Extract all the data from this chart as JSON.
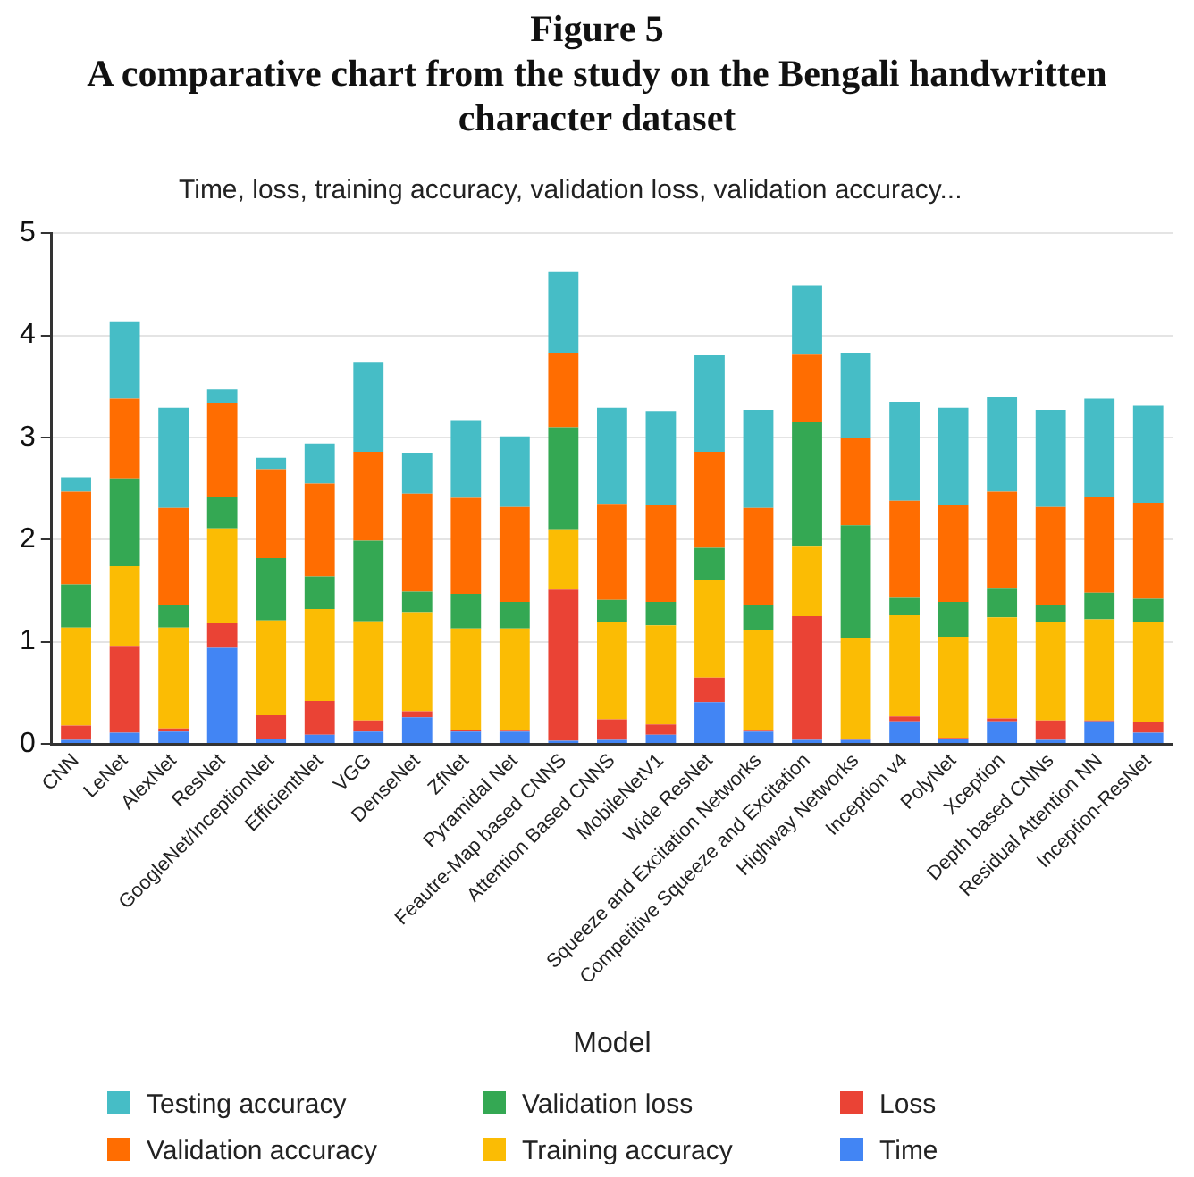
{
  "chart_data": {
    "type": "bar",
    "stacked": true,
    "title": "Time, loss, training accuracy, validation loss, validation accuracy...",
    "annotations": [
      "Figure 5",
      "A comparative chart from the study on the Bengali handwritten character dataset"
    ],
    "xlabel": "Model",
    "categories": [
      "CNN",
      "LeNet",
      "AlexNet",
      "ResNet",
      "GoogleNet/InceptionNet",
      "EfficientNet",
      "VGG",
      "DenseNet",
      "ZfNet",
      "Pyramidal Net",
      "Feautre-Map based CNNS",
      "Attention Based CNNS",
      "MobileNetV1",
      "Wide ResNet",
      "Squeeze and Excitation Networks",
      "Competitive Squeeze and Excitation",
      "Highway Networks",
      "Inception v4",
      "PolyNet",
      "Xception",
      "Depth based CNNs",
      "Residual Attention NN",
      "Inception-ResNet"
    ],
    "series": [
      {
        "name": "Time",
        "color": "#4285f4",
        "values": [
          0.04,
          0.11,
          0.12,
          0.94,
          0.05,
          0.09,
          0.12,
          0.26,
          0.12,
          0.12,
          0.03,
          0.04,
          0.09,
          0.41,
          0.12,
          0.04,
          0.04,
          0.22,
          0.05,
          0.22,
          0.04,
          0.22,
          0.11
        ]
      },
      {
        "name": "Loss",
        "color": "#ea4335",
        "values": [
          0.14,
          0.85,
          0.03,
          0.24,
          0.23,
          0.33,
          0.11,
          0.06,
          0.02,
          0.01,
          1.48,
          0.2,
          0.1,
          0.24,
          0.01,
          1.21,
          0.01,
          0.05,
          0.01,
          0.03,
          0.19,
          0.01,
          0.1
        ]
      },
      {
        "name": "Training accuracy",
        "color": "#fbbc04",
        "values": [
          0.96,
          0.78,
          0.99,
          0.93,
          0.93,
          0.9,
          0.97,
          0.97,
          0.99,
          1.0,
          0.59,
          0.95,
          0.97,
          0.96,
          0.99,
          0.69,
          0.99,
          0.99,
          0.99,
          0.99,
          0.96,
          0.99,
          0.98
        ]
      },
      {
        "name": "Validation loss",
        "color": "#34a853",
        "values": [
          0.42,
          0.86,
          0.22,
          0.31,
          0.61,
          0.32,
          0.79,
          0.2,
          0.34,
          0.26,
          1.0,
          0.22,
          0.23,
          0.31,
          0.24,
          1.21,
          1.1,
          0.17,
          0.34,
          0.28,
          0.17,
          0.26,
          0.23
        ]
      },
      {
        "name": "Validation accuracy",
        "color": "#ff6d01",
        "values": [
          0.91,
          0.78,
          0.95,
          0.92,
          0.87,
          0.91,
          0.87,
          0.96,
          0.94,
          0.93,
          0.73,
          0.94,
          0.95,
          0.94,
          0.95,
          0.67,
          0.86,
          0.95,
          0.95,
          0.95,
          0.96,
          0.94,
          0.94
        ]
      },
      {
        "name": "Testing accuracy",
        "color": "#46bdc6",
        "values": [
          0.14,
          0.75,
          0.98,
          0.13,
          0.11,
          0.39,
          0.88,
          0.4,
          0.76,
          0.69,
          0.79,
          0.94,
          0.92,
          0.95,
          0.96,
          0.67,
          0.83,
          0.97,
          0.95,
          0.93,
          0.95,
          0.96,
          0.95
        ]
      }
    ],
    "ylim": [
      0,
      5
    ],
    "yticks": [
      0,
      1,
      2,
      3,
      4,
      5
    ],
    "grid": "y",
    "legend": "bottom"
  }
}
